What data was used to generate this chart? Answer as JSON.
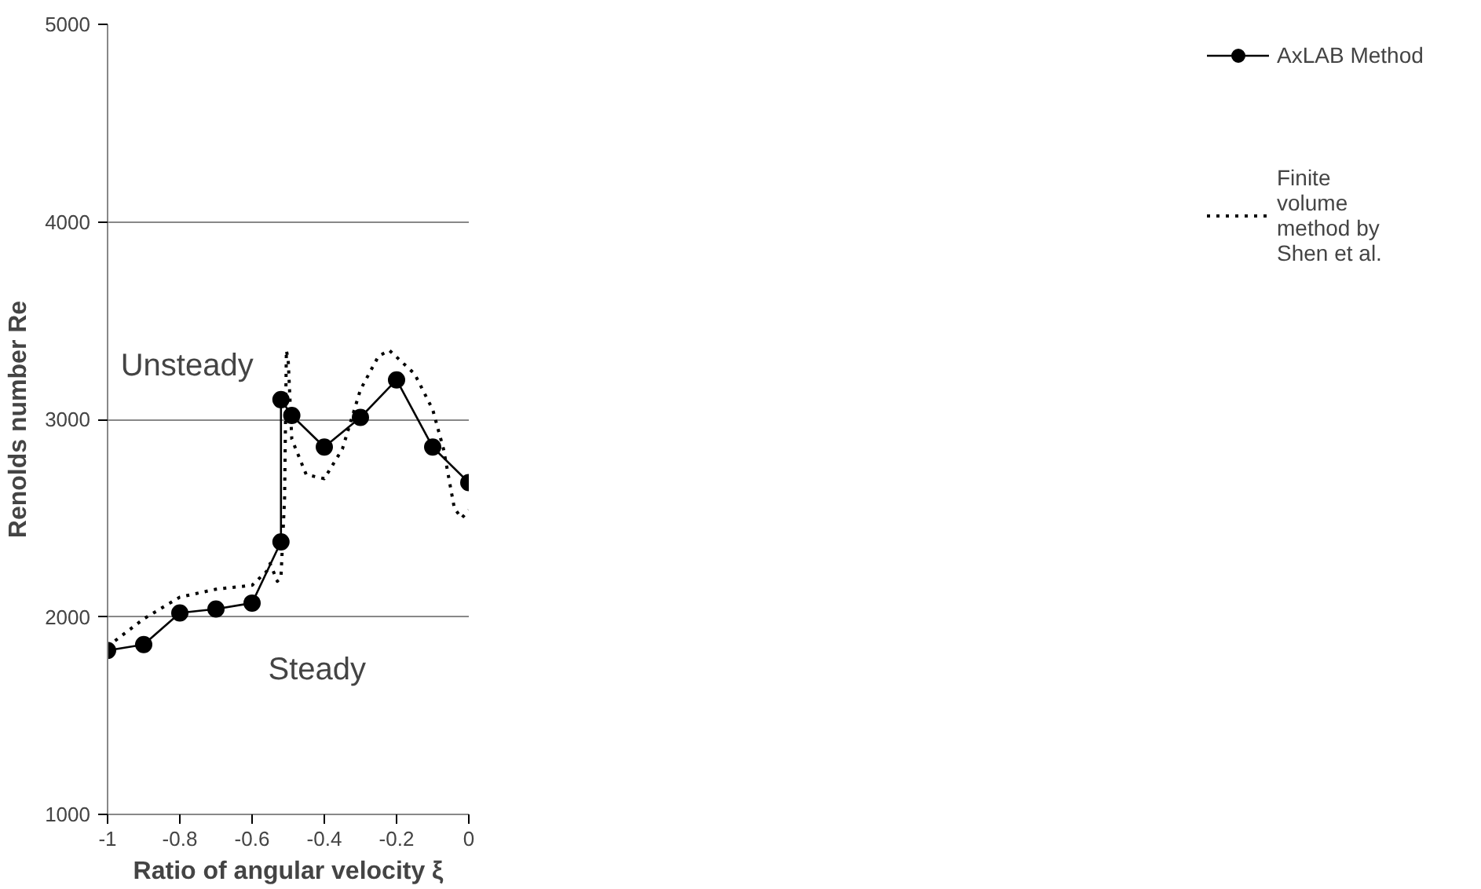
{
  "chart_data": {
    "type": "line",
    "xlabel": "Ratio of angular velocity ξ",
    "ylabel": "Renolds number Re",
    "xlim": [
      -1,
      0
    ],
    "ylim": [
      1000,
      5000
    ],
    "xticks": [
      -1,
      -0.8,
      -0.6,
      -0.4,
      -0.2,
      0
    ],
    "yticks": [
      1000,
      2000,
      3000,
      4000,
      5000
    ],
    "grid": "y",
    "legend": "right",
    "annotations": [
      "Unsteady",
      "Steady"
    ],
    "series": [
      {
        "name": "AxLAB Method",
        "color": "#000000",
        "marker": "circle",
        "line_style": "solid",
        "x": [
          -1,
          -0.9,
          -0.8,
          -0.7,
          -0.6,
          -0.52,
          -0.52,
          -0.49,
          -0.4,
          -0.3,
          -0.2,
          -0.1,
          0
        ],
        "values": [
          1830,
          1860,
          2020,
          2040,
          2070,
          2380,
          3100,
          3020,
          2860,
          3010,
          3200,
          2860,
          2680
        ]
      },
      {
        "name": "Finite volume method by Shen et al.",
        "color": "#000000",
        "marker": "none",
        "line_style": "dotted",
        "x": [
          -1,
          -0.9,
          -0.8,
          -0.7,
          -0.6,
          -0.56,
          -0.55,
          -0.53,
          -0.52,
          -0.51,
          -0.505,
          -0.5,
          -0.49,
          -0.45,
          -0.4,
          -0.35,
          -0.3,
          -0.25,
          -0.22,
          -0.15,
          -0.1,
          -0.07,
          -0.04,
          -0.02,
          0
        ],
        "values": [
          1850,
          1990,
          2100,
          2140,
          2160,
          2230,
          2270,
          2180,
          2200,
          2600,
          3350,
          3300,
          2900,
          2720,
          2700,
          2850,
          3150,
          3320,
          3350,
          3230,
          3050,
          2850,
          2550,
          2500,
          2540
        ]
      }
    ]
  }
}
